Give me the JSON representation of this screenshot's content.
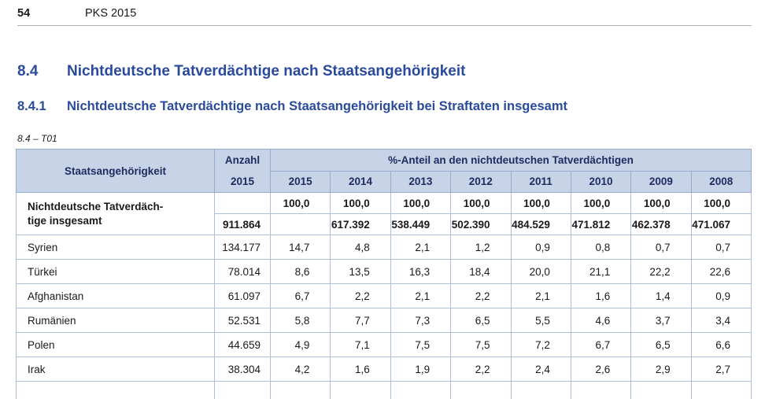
{
  "page": {
    "number": "54",
    "header_title": "PKS 2015"
  },
  "headings": {
    "section": {
      "num": "8.4",
      "text": "Nichtdeutsche Tatverdächtige nach Staatsangehörigkeit"
    },
    "subsection": {
      "num": "8.4.1",
      "text": "Nichtdeutsche Tatverdächtige nach Staatsangehörigkeit bei Straftaten insgesamt"
    },
    "table_label": "8.4 – T01"
  },
  "table": {
    "col_headers": {
      "staat": "Staatsangehörigkeit",
      "anzahl_line1": "Anzahl",
      "anzahl_line2": "2015",
      "pct_group": "%-Anteil an den nichtdeutschen Tatverdächtigen",
      "years": [
        "2015",
        "2014",
        "2013",
        "2012",
        "2011",
        "2010",
        "2009",
        "2008"
      ]
    },
    "total_row": {
      "label_line1": "Nichtdeutsche Tatverdäch-",
      "label_line2": "tige insgesamt",
      "anzahl": "911.864",
      "pct_values": [
        "100,0",
        "100,0",
        "100,0",
        "100,0",
        "100,0",
        "100,0",
        "100,0",
        "100,0"
      ],
      "abs_values": [
        "",
        "617.392",
        "538.449",
        "502.390",
        "484.529",
        "471.812",
        "462.378",
        "471.067"
      ]
    },
    "rows": [
      {
        "name": "Syrien",
        "anzahl": "134.177",
        "values": [
          "14,7",
          "4,8",
          "2,1",
          "1,2",
          "0,9",
          "0,8",
          "0,7",
          "0,7"
        ]
      },
      {
        "name": "Türkei",
        "anzahl": "78.014",
        "values": [
          "8,6",
          "13,5",
          "16,3",
          "18,4",
          "20,0",
          "21,1",
          "22,2",
          "22,6"
        ]
      },
      {
        "name": "Afghanistan",
        "anzahl": "61.097",
        "values": [
          "6,7",
          "2,2",
          "2,1",
          "2,2",
          "2,1",
          "1,6",
          "1,4",
          "0,9"
        ]
      },
      {
        "name": "Rumänien",
        "anzahl": "52.531",
        "values": [
          "5,8",
          "7,7",
          "7,3",
          "6,5",
          "5,5",
          "4,6",
          "3,7",
          "3,4"
        ]
      },
      {
        "name": "Polen",
        "anzahl": "44.659",
        "values": [
          "4,9",
          "7,1",
          "7,5",
          "7,5",
          "7,2",
          "6,7",
          "6,5",
          "6,6"
        ]
      },
      {
        "name": "Irak",
        "anzahl": "38.304",
        "values": [
          "4,2",
          "1,6",
          "1,9",
          "2,2",
          "2,4",
          "2,6",
          "2,9",
          "2,7"
        ]
      }
    ]
  },
  "colors": {
    "heading_blue": "#2a4a9e",
    "table_header_bg": "#c7d3e7",
    "table_header_text": "#1e2b5f",
    "table_border": "#aebfda"
  }
}
